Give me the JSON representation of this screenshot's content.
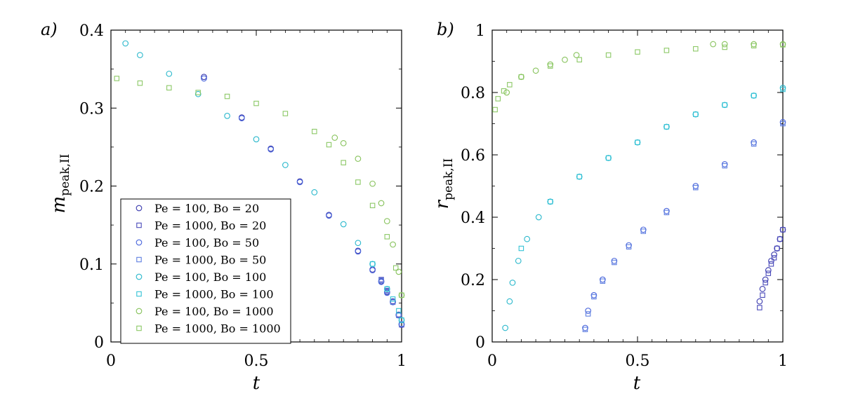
{
  "chart_data": [
    {
      "type": "scatter",
      "panel_label": "a)",
      "xlabel": "t",
      "ylabel": "m",
      "ylabel_sub": "peak,II",
      "xlim": [
        0,
        1
      ],
      "ylim": [
        0,
        0.4
      ],
      "xticks": [
        0,
        0.5,
        1
      ],
      "xtick_labels": [
        "0",
        "0.5",
        "1"
      ],
      "yticks": [
        0,
        0.1,
        0.2,
        0.3,
        0.4
      ],
      "ytick_labels": [
        "0",
        "0.1",
        "0.2",
        "0.3",
        "0.4"
      ],
      "grid": false,
      "legend_position": "bottom-left",
      "series": [
        {
          "name": "Pe = 100, Bo = 20",
          "marker": "circle",
          "color": "#3a3aae",
          "x": [
            0.32,
            0.45,
            0.55,
            0.65,
            0.75,
            0.85,
            0.9,
            0.93,
            0.95,
            0.97,
            0.99,
            1.0
          ],
          "y": [
            0.34,
            0.288,
            0.248,
            0.206,
            0.163,
            0.117,
            0.093,
            0.078,
            0.064,
            0.052,
            0.035,
            0.022
          ]
        },
        {
          "name": "Pe = 1000, Bo = 20",
          "marker": "square",
          "color": "#4a4aba",
          "x": [
            0.93,
            0.95,
            0.97,
            0.99,
            1.0
          ],
          "y": [
            0.08,
            0.066,
            0.052,
            0.035,
            0.022
          ]
        },
        {
          "name": "Pe = 100, Bo = 50",
          "marker": "circle",
          "color": "#4a66dc",
          "x": [
            0.32,
            0.45,
            0.55,
            0.65,
            0.75,
            0.85,
            0.9,
            0.93,
            0.95,
            0.97,
            0.99,
            1.0
          ],
          "y": [
            0.338,
            0.287,
            0.247,
            0.205,
            0.162,
            0.116,
            0.092,
            0.077,
            0.063,
            0.051,
            0.034,
            0.023
          ]
        },
        {
          "name": "Pe = 1000, Bo = 50",
          "marker": "square",
          "color": "#5f7fe0",
          "x": [
            0.93,
            0.95,
            0.97,
            0.99,
            1.0
          ],
          "y": [
            0.079,
            0.065,
            0.051,
            0.034,
            0.023
          ]
        },
        {
          "name": "Pe = 100, Bo = 100",
          "marker": "circle",
          "color": "#2ab8cc",
          "x": [
            0.05,
            0.1,
            0.2,
            0.3,
            0.4,
            0.5,
            0.6,
            0.7,
            0.8,
            0.85,
            0.9,
            0.95,
            1.0
          ],
          "y": [
            0.383,
            0.368,
            0.344,
            0.318,
            0.29,
            0.26,
            0.227,
            0.192,
            0.151,
            0.127,
            0.1,
            0.068,
            0.028
          ]
        },
        {
          "name": "Pe = 1000, Bo = 100",
          "marker": "square",
          "color": "#33c2d6",
          "x": [
            0.9,
            0.95,
            0.97,
            0.99,
            1.0
          ],
          "y": [
            0.1,
            0.068,
            0.055,
            0.04,
            0.028
          ]
        },
        {
          "name": "Pe = 100, Bo = 1000",
          "marker": "circle",
          "color": "#86c25a",
          "x": [
            0.77,
            0.8,
            0.85,
            0.9,
            0.93,
            0.95,
            0.97,
            0.99,
            1.0
          ],
          "y": [
            0.262,
            0.255,
            0.235,
            0.203,
            0.178,
            0.155,
            0.125,
            0.09,
            0.06
          ]
        },
        {
          "name": "Pe = 1000, Bo = 1000",
          "marker": "square",
          "color": "#8cc866",
          "x": [
            0.02,
            0.1,
            0.2,
            0.3,
            0.4,
            0.5,
            0.6,
            0.7,
            0.75,
            0.8,
            0.85,
            0.9,
            0.95,
            0.98,
            1.0
          ],
          "y": [
            0.338,
            0.332,
            0.326,
            0.32,
            0.315,
            0.306,
            0.293,
            0.27,
            0.253,
            0.23,
            0.205,
            0.175,
            0.135,
            0.095,
            0.06
          ]
        }
      ]
    },
    {
      "type": "scatter",
      "panel_label": "b)",
      "xlabel": "t",
      "ylabel": "r",
      "ylabel_sub": "peak,II",
      "xlim": [
        0,
        1
      ],
      "ylim": [
        0,
        1
      ],
      "xticks": [
        0,
        0.5,
        1
      ],
      "xtick_labels": [
        "0",
        "0.5",
        "1"
      ],
      "yticks": [
        0,
        0.2,
        0.4,
        0.6,
        0.8,
        1.0
      ],
      "ytick_labels": [
        "0",
        "0.2",
        "0.4",
        "0.6",
        "0.8",
        "1"
      ],
      "grid": false,
      "series": [
        {
          "name": "Pe = 100, Bo = 20",
          "marker": "circle",
          "color": "#3a3aae",
          "x": [
            0.92,
            0.93,
            0.94,
            0.95,
            0.96,
            0.97,
            0.98,
            0.99,
            1.0
          ],
          "y": [
            0.13,
            0.17,
            0.2,
            0.23,
            0.26,
            0.28,
            0.3,
            0.33,
            0.36
          ]
        },
        {
          "name": "Pe = 1000, Bo = 20",
          "marker": "square",
          "color": "#4a4aba",
          "x": [
            0.92,
            0.93,
            0.94,
            0.95,
            0.96,
            0.97,
            0.98,
            0.99,
            1.0
          ],
          "y": [
            0.11,
            0.15,
            0.19,
            0.22,
            0.25,
            0.27,
            0.3,
            0.33,
            0.36
          ]
        },
        {
          "name": "Pe = 100, Bo = 50",
          "marker": "circle",
          "color": "#4a66dc",
          "x": [
            0.32,
            0.33,
            0.35,
            0.38,
            0.42,
            0.47,
            0.52,
            0.6,
            0.7,
            0.8,
            0.9,
            1.0
          ],
          "y": [
            0.045,
            0.1,
            0.15,
            0.2,
            0.26,
            0.31,
            0.36,
            0.42,
            0.5,
            0.57,
            0.64,
            0.705
          ]
        },
        {
          "name": "Pe = 1000, Bo = 50",
          "marker": "square",
          "color": "#5f7fe0",
          "x": [
            0.32,
            0.33,
            0.35,
            0.38,
            0.42,
            0.47,
            0.52,
            0.6,
            0.7,
            0.8,
            0.9,
            1.0
          ],
          "y": [
            0.04,
            0.09,
            0.145,
            0.195,
            0.255,
            0.305,
            0.355,
            0.415,
            0.495,
            0.565,
            0.635,
            0.7
          ]
        },
        {
          "name": "Pe = 100, Bo = 100",
          "marker": "circle",
          "color": "#2ab8cc",
          "x": [
            0.045,
            0.06,
            0.07,
            0.09,
            0.12,
            0.16,
            0.2,
            0.3,
            0.4,
            0.5,
            0.6,
            0.7,
            0.8,
            0.9,
            1.0
          ],
          "y": [
            0.045,
            0.13,
            0.19,
            0.26,
            0.33,
            0.4,
            0.45,
            0.53,
            0.59,
            0.64,
            0.69,
            0.73,
            0.76,
            0.79,
            0.815
          ]
        },
        {
          "name": "Pe = 1000, Bo = 100",
          "marker": "square",
          "color": "#33c2d6",
          "x": [
            0.1,
            0.2,
            0.3,
            0.4,
            0.5,
            0.6,
            0.7,
            0.8,
            0.9,
            1.0
          ],
          "y": [
            0.3,
            0.45,
            0.53,
            0.59,
            0.64,
            0.69,
            0.73,
            0.76,
            0.79,
            0.81
          ]
        },
        {
          "name": "Pe = 100, Bo = 1000",
          "marker": "circle",
          "color": "#86c25a",
          "x": [
            0.05,
            0.1,
            0.15,
            0.2,
            0.25,
            0.29,
            0.76,
            0.8,
            0.9,
            1.0
          ],
          "y": [
            0.8,
            0.85,
            0.87,
            0.89,
            0.905,
            0.92,
            0.955,
            0.955,
            0.955,
            0.955
          ]
        },
        {
          "name": "Pe = 1000, Bo = 1000",
          "marker": "square",
          "color": "#8cc866",
          "x": [
            0.01,
            0.02,
            0.04,
            0.06,
            0.1,
            0.2,
            0.3,
            0.4,
            0.5,
            0.6,
            0.7,
            0.8,
            0.9,
            1.0
          ],
          "y": [
            0.745,
            0.78,
            0.805,
            0.825,
            0.85,
            0.885,
            0.905,
            0.92,
            0.93,
            0.935,
            0.94,
            0.945,
            0.95,
            0.953
          ]
        }
      ]
    }
  ]
}
